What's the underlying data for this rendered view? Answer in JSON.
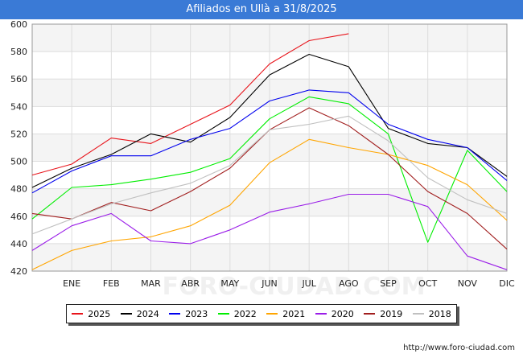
{
  "chart_data": {
    "type": "line",
    "title": "Afiliados en Ullà a 31/8/2025",
    "xlabel": "",
    "ylabel": "",
    "ylim": [
      420,
      600
    ],
    "yticks": [
      420,
      440,
      460,
      480,
      500,
      520,
      540,
      560,
      580,
      600
    ],
    "categories": [
      "",
      "ENE",
      "FEB",
      "MAR",
      "ABR",
      "MAY",
      "JUN",
      "JUL",
      "AGO",
      "SEP",
      "OCT",
      "NOV",
      "DIC"
    ],
    "grid": true,
    "legend_position": "bottom",
    "watermark": "FORO-CIUDAD.COM",
    "series": [
      {
        "name": "2025",
        "color": "#e8141b",
        "values": [
          490,
          498,
          517,
          513,
          527,
          541,
          571,
          588,
          593,
          null,
          null,
          null,
          null
        ]
      },
      {
        "name": "2024",
        "color": "#000000",
        "values": [
          481,
          495,
          505,
          520,
          514,
          532,
          563,
          578,
          569,
          524,
          513,
          510,
          489
        ]
      },
      {
        "name": "2023",
        "color": "#0000ee",
        "values": [
          477,
          493,
          504,
          504,
          516,
          524,
          544,
          552,
          550,
          527,
          516,
          510,
          486
        ]
      },
      {
        "name": "2022",
        "color": "#00ee00",
        "values": [
          458,
          481,
          483,
          487,
          492,
          502,
          531,
          547,
          542,
          520,
          441,
          508,
          478
        ]
      },
      {
        "name": "2021",
        "color": "#ffa500",
        "values": [
          421,
          435,
          442,
          445,
          453,
          468,
          499,
          516,
          510,
          505,
          497,
          483,
          457
        ]
      },
      {
        "name": "2020",
        "color": "#9a1de8",
        "values": [
          435,
          453,
          462,
          442,
          440,
          450,
          463,
          469,
          476,
          476,
          467,
          431,
          421
        ]
      },
      {
        "name": "2019",
        "color": "#a11e1e",
        "values": [
          462,
          458,
          470,
          464,
          478,
          495,
          523,
          539,
          526,
          505,
          478,
          462,
          436
        ]
      },
      {
        "name": "2018",
        "color": "#c0c0c0",
        "values": [
          447,
          458,
          469,
          477,
          484,
          497,
          523,
          527,
          533,
          515,
          488,
          472,
          462
        ]
      }
    ]
  },
  "footer": {
    "url": "http://www.foro-ciudad.com"
  }
}
